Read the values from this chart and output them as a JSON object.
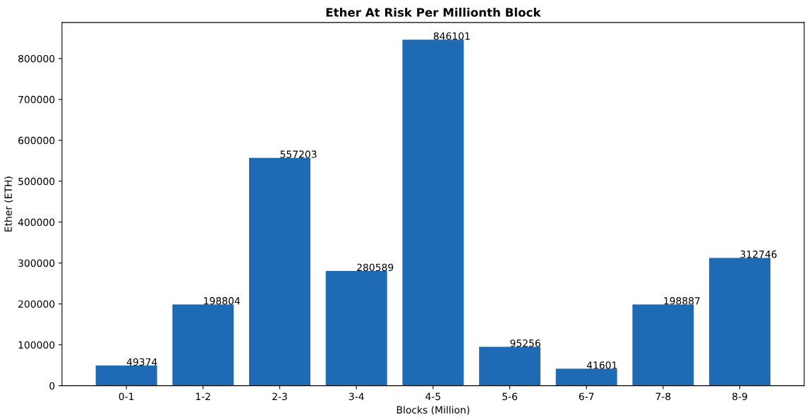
{
  "chart_data": {
    "type": "bar",
    "title": "Ether At Risk Per Millionth Block",
    "xlabel": "Blocks (Million)",
    "ylabel": "Ether (ETH)",
    "categories": [
      "0-1",
      "1-2",
      "2-3",
      "3-4",
      "4-5",
      "5-6",
      "6-7",
      "7-8",
      "8-9"
    ],
    "values": [
      49374,
      198804,
      557203,
      280589,
      846101,
      95256,
      41601,
      198887,
      312746
    ],
    "color": "#1f6ab4",
    "data_labels": true,
    "grid": false,
    "legend": false,
    "ylim": [
      0,
      888000
    ],
    "yticks": [
      0,
      100000,
      200000,
      300000,
      400000,
      500000,
      600000,
      700000,
      800000
    ]
  }
}
